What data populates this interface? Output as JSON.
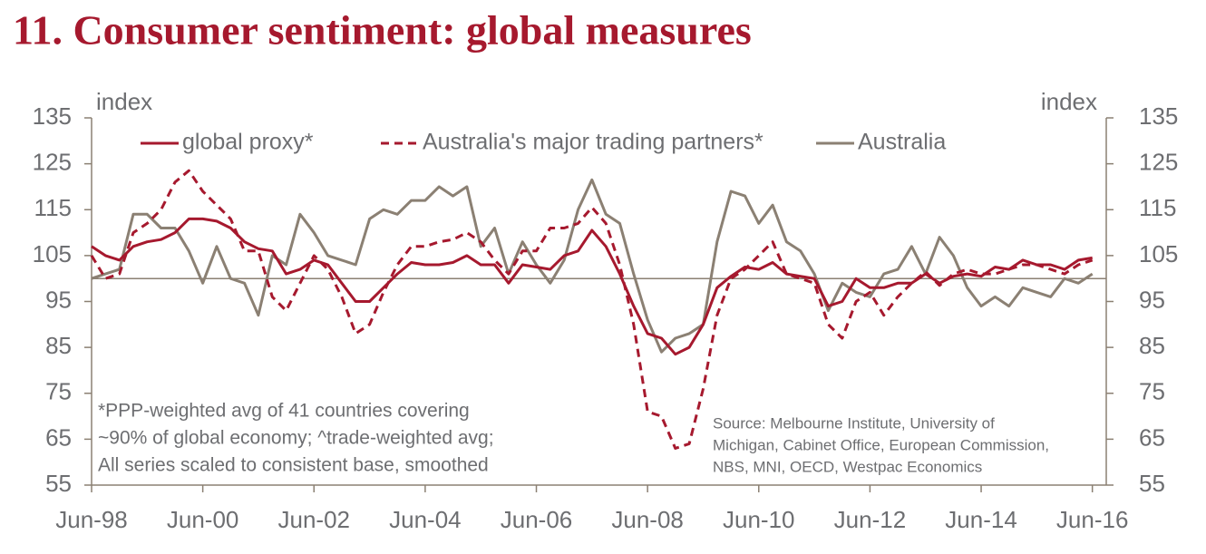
{
  "chart_data": {
    "type": "line",
    "title": "11.  Consumer sentiment: global measures",
    "y_label": "index",
    "y2_label": "index",
    "x": [
      "Jun-98",
      "Sep-98",
      "Dec-98",
      "Mar-99",
      "Jun-99",
      "Sep-99",
      "Dec-99",
      "Mar-00",
      "Jun-00",
      "Sep-00",
      "Dec-00",
      "Mar-01",
      "Jun-01",
      "Sep-01",
      "Dec-01",
      "Mar-02",
      "Jun-02",
      "Sep-02",
      "Dec-02",
      "Mar-03",
      "Jun-03",
      "Sep-03",
      "Dec-03",
      "Mar-04",
      "Jun-04",
      "Sep-04",
      "Dec-04",
      "Mar-05",
      "Jun-05",
      "Sep-05",
      "Dec-05",
      "Mar-06",
      "Jun-06",
      "Sep-06",
      "Dec-06",
      "Mar-07",
      "Jun-07",
      "Sep-07",
      "Dec-07",
      "Mar-08",
      "Jun-08",
      "Sep-08",
      "Dec-08",
      "Mar-09",
      "Jun-09",
      "Sep-09",
      "Dec-09",
      "Mar-10",
      "Jun-10",
      "Sep-10",
      "Dec-10",
      "Mar-11",
      "Jun-11",
      "Sep-11",
      "Dec-11",
      "Mar-12",
      "Jun-12",
      "Sep-12",
      "Dec-12",
      "Mar-13",
      "Jun-13",
      "Sep-13",
      "Dec-13",
      "Mar-14",
      "Jun-14",
      "Sep-14",
      "Dec-14",
      "Mar-15",
      "Jun-15",
      "Sep-15",
      "Dec-15",
      "Mar-16",
      "Jun-16"
    ],
    "series": [
      {
        "name": "global proxy*",
        "color": "#a6192e",
        "dash": false,
        "values": [
          107,
          105,
          104,
          107,
          108,
          108.5,
          110,
          113,
          113,
          112.5,
          111,
          108,
          106.5,
          106,
          101,
          102,
          104,
          103,
          99,
          95,
          95,
          98,
          101,
          103.5,
          103,
          103,
          103.5,
          105,
          103,
          103,
          99,
          103,
          102.5,
          102,
          105,
          106,
          110.5,
          107,
          101,
          94,
          88,
          87,
          83.5,
          85,
          90,
          98,
          100.5,
          102.5,
          102,
          103.5,
          101,
          100.5,
          100,
          94,
          95,
          100,
          98,
          98,
          99,
          99,
          101,
          99,
          100.5,
          101,
          100.5,
          102.5,
          102,
          104,
          103,
          103,
          102,
          104,
          104.5
        ]
      },
      {
        "name": "Australia's major trading partners*",
        "color": "#a6192e",
        "dash": true,
        "values": [
          105,
          100,
          101,
          110,
          112,
          115,
          121,
          123.5,
          119,
          116,
          113,
          106,
          106,
          96,
          93,
          99,
          105,
          102,
          96,
          88,
          90,
          97,
          103,
          107,
          107,
          108,
          108.5,
          110,
          108,
          104,
          101,
          106,
          106,
          111,
          111,
          112,
          115.5,
          112,
          103,
          90,
          71,
          70,
          63,
          64,
          76,
          92,
          100,
          102,
          105,
          108,
          101,
          100,
          99,
          90,
          87,
          95,
          97,
          92,
          96,
          99,
          101.5,
          98.5,
          101,
          102,
          101,
          101,
          102,
          103,
          103,
          102,
          101,
          103,
          104
        ]
      },
      {
        "name": "Australia",
        "color": "#8b8073",
        "dash": false,
        "values": [
          100,
          101,
          102,
          114,
          114,
          111,
          111,
          106,
          99,
          107,
          100,
          99,
          92,
          105,
          103,
          114,
          110,
          105,
          104,
          103,
          113,
          115,
          114,
          117,
          117,
          120,
          118,
          120,
          107,
          111,
          101,
          108,
          103,
          99,
          104,
          115,
          121.5,
          114,
          112,
          101,
          91,
          84,
          87,
          88,
          90,
          108,
          119,
          118,
          112,
          116,
          108,
          106,
          101,
          93,
          99,
          97,
          96,
          101,
          102,
          107,
          101,
          109,
          105,
          98,
          94,
          96,
          94,
          98,
          97,
          96,
          100,
          99,
          101
        ]
      }
    ],
    "xlim": [
      "Jun-98",
      "Sep-16"
    ],
    "xticks": [
      "Jun-98",
      "Jun-00",
      "Jun-02",
      "Jun-04",
      "Jun-06",
      "Jun-08",
      "Jun-10",
      "Jun-12",
      "Jun-14",
      "Jun-16"
    ],
    "ylim": [
      55,
      135
    ],
    "yticks": [
      55,
      65,
      75,
      85,
      95,
      105,
      115,
      125,
      135
    ],
    "y2lim": [
      55,
      135
    ],
    "y2ticks": [
      55,
      65,
      75,
      85,
      95,
      105,
      115,
      125,
      135
    ],
    "reference_line": 100,
    "legend": "top",
    "note": [
      "*PPP-weighted avg of 41 countries covering",
      "~90% of global economy; ^trade-weighted avg;",
      "All series scaled to consistent base, smoothed"
    ],
    "source": [
      "Source: Melbourne Institute, University of",
      "Michigan, Cabinet Office,  European Commission,",
      "NBS, MNI, OECD, Westpac Economics"
    ]
  }
}
